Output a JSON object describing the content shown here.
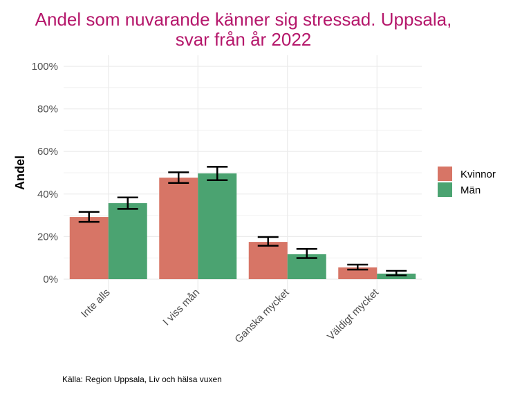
{
  "chart_data": {
    "type": "bar",
    "title_line1": "Andel som nuvarande känner sig stressad. Uppsala,",
    "title_line2": "svar från år 2022",
    "xlabel": "",
    "ylabel": "Andel",
    "ylim": [
      0,
      100
    ],
    "yticks": [
      0,
      20,
      40,
      60,
      80,
      100
    ],
    "ytick_labels": [
      "0%",
      "20%",
      "40%",
      "60%",
      "80%",
      "100%"
    ],
    "categories": [
      "Inte alls",
      "I viss mån",
      "Ganska mycket",
      "Väldigt mycket"
    ],
    "series": [
      {
        "name": "Kvinnor",
        "color": "#D77566",
        "values": [
          29.2,
          47.7,
          17.5,
          5.5
        ],
        "err_low": [
          26.9,
          45.2,
          15.7,
          4.5
        ],
        "err_high": [
          31.6,
          50.2,
          19.8,
          6.8
        ]
      },
      {
        "name": "Män",
        "color": "#4BA371",
        "values": [
          35.7,
          49.7,
          11.7,
          2.6
        ],
        "err_low": [
          33.0,
          46.5,
          9.9,
          1.8
        ],
        "err_high": [
          38.4,
          52.8,
          14.2,
          3.9
        ]
      }
    ],
    "legend_position": "right",
    "grid": true,
    "caption": "Källa: Region Uppsala, Liv och hälsa vuxen"
  }
}
